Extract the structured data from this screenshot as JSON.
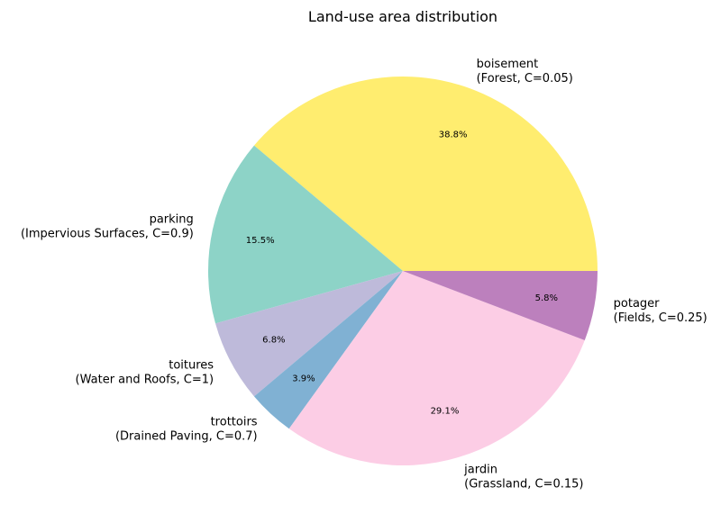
{
  "chart_data": {
    "type": "pie",
    "title": "Land-use area distribution",
    "slices": [
      {
        "name": "boisement",
        "sub": "(Forest, C=0.05)",
        "value": 38.8,
        "pct_label": "38.8%",
        "color": "#ffed6f"
      },
      {
        "name": "parking",
        "sub": "(Impervious Surfaces, C=0.9)",
        "value": 15.5,
        "pct_label": "15.5%",
        "color": "#8dd3c7"
      },
      {
        "name": "toitures",
        "sub": "(Water and Roofs, C=1)",
        "value": 6.8,
        "pct_label": "6.8%",
        "color": "#bebada"
      },
      {
        "name": "trottoirs",
        "sub": "(Drained Paving, C=0.7)",
        "value": 3.9,
        "pct_label": "3.9%",
        "color": "#80b1d3"
      },
      {
        "name": "jardin",
        "sub": "(Grassland, C=0.15)",
        "value": 29.1,
        "pct_label": "29.1%",
        "color": "#fccde5"
      },
      {
        "name": "potager",
        "sub": "(Fields, C=0.25)",
        "value": 5.8,
        "pct_label": "5.8%",
        "color": "#bc80bd"
      }
    ],
    "start_angle_deg": 0,
    "direction": "counterclockwise"
  }
}
